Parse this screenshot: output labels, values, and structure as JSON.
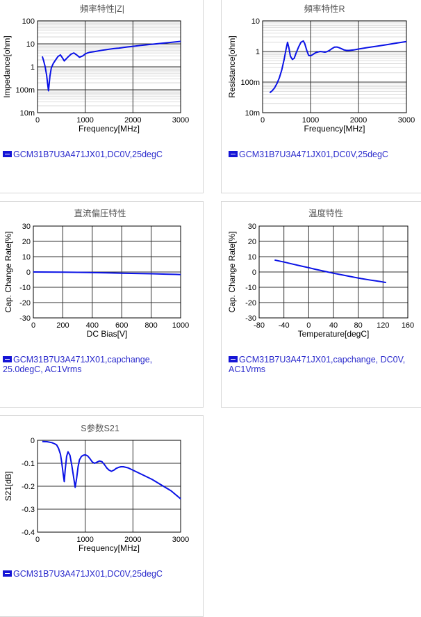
{
  "colors": {
    "series": "#0a12e6",
    "legend_text": "#2a2acc",
    "title": "#555555",
    "panel_border": "#d6d6d6"
  },
  "chart_data": [
    {
      "type": "line",
      "title": "頻率特性|Z|",
      "xlabel": "Frequency[MHz]",
      "ylabel": "Impedance[ohm]",
      "xlim": [
        0,
        3000
      ],
      "ylim": [
        0.01,
        100
      ],
      "yscale": "log",
      "x_ticks": [
        "0",
        "1000",
        "2000",
        "3000"
      ],
      "y_ticks": [
        "10m",
        "100m",
        "1",
        "10",
        "100"
      ],
      "grid": true,
      "legend_icon": "minus-icon",
      "legend": "GCM31B7U3A471JX01,DC0V,25degC",
      "series": [
        {
          "name": "GCM31B7U3A471JX01,DC0V,25degC",
          "x": [
            100,
            130,
            160,
            190,
            210,
            230,
            245,
            260,
            290,
            330,
            380,
            430,
            480,
            520,
            560,
            600,
            650,
            700,
            760,
            820,
            880,
            950,
            1000,
            1050,
            1100,
            1200,
            1300,
            1400,
            1500,
            1600,
            1700,
            1800,
            2000,
            2200,
            2400,
            2600,
            2800,
            3000
          ],
          "y": [
            2.8,
            1.8,
            1.0,
            0.45,
            0.2,
            0.09,
            0.18,
            0.4,
            0.9,
            1.4,
            2.0,
            2.8,
            3.3,
            2.5,
            1.8,
            2.2,
            2.8,
            3.5,
            4.0,
            3.3,
            2.6,
            3.0,
            3.6,
            4.0,
            4.3,
            4.6,
            5.0,
            5.4,
            5.8,
            6.2,
            6.5,
            6.9,
            7.8,
            8.7,
            9.6,
            10.6,
            11.6,
            12.8
          ]
        }
      ]
    },
    {
      "type": "line",
      "title": "頻率特性R",
      "xlabel": "Frequency[MHz]",
      "ylabel": "Resistance[ohm]",
      "xlim": [
        0,
        3000
      ],
      "ylim": [
        0.01,
        10
      ],
      "yscale": "log",
      "x_ticks": [
        "0",
        "1000",
        "2000",
        "3000"
      ],
      "y_ticks": [
        "10m",
        "100m",
        "1",
        "10"
      ],
      "grid": true,
      "legend_icon": "minus-icon",
      "legend": "GCM31B7U3A471JX01,DC0V,25degC",
      "series": [
        {
          "name": "GCM31B7U3A471JX01,DC0V,25degC",
          "x": [
            150,
            200,
            250,
            300,
            350,
            400,
            450,
            490,
            520,
            550,
            580,
            620,
            660,
            700,
            750,
            800,
            850,
            880,
            920,
            960,
            1000,
            1050,
            1100,
            1150,
            1200,
            1250,
            1300,
            1350,
            1400,
            1450,
            1500,
            1550,
            1600,
            1650,
            1700,
            1750,
            1800,
            1900,
            2000,
            2200,
            2400,
            2600,
            2800,
            3000
          ],
          "y": [
            0.045,
            0.052,
            0.065,
            0.09,
            0.14,
            0.25,
            0.55,
            1.2,
            2.0,
            1.3,
            0.7,
            0.55,
            0.6,
            0.9,
            1.4,
            2.0,
            2.2,
            1.8,
            1.1,
            0.75,
            0.72,
            0.8,
            0.9,
            0.96,
            1.0,
            0.98,
            0.95,
            1.0,
            1.1,
            1.25,
            1.38,
            1.4,
            1.32,
            1.22,
            1.12,
            1.08,
            1.08,
            1.12,
            1.2,
            1.35,
            1.5,
            1.68,
            1.88,
            2.1
          ]
        }
      ]
    },
    {
      "type": "line",
      "title": "直流偏圧特性",
      "xlabel": "DC Bias[V]",
      "ylabel": "Cap. Change Rate[%]",
      "xlim": [
        0,
        1000
      ],
      "ylim": [
        -30,
        30
      ],
      "x_ticks": [
        "0",
        "200",
        "400",
        "600",
        "800",
        "1000"
      ],
      "y_ticks": [
        "-30",
        "-20",
        "-10",
        "0",
        "10",
        "20",
        "30"
      ],
      "grid": true,
      "legend_icon": "minus-icon",
      "legend": "GCM31B7U3A471JX01,capchange,\n25.0degC, AC1Vrms",
      "series": [
        {
          "name": "GCM31B7U3A471JX01,capchange, 25.0degC, AC1Vrms",
          "x": [
            0,
            100,
            200,
            300,
            400,
            500,
            600,
            700,
            800,
            900,
            1000
          ],
          "y": [
            0,
            -0.05,
            -0.15,
            -0.25,
            -0.4,
            -0.55,
            -0.75,
            -0.95,
            -1.15,
            -1.4,
            -1.7
          ]
        }
      ]
    },
    {
      "type": "line",
      "title": "温度特性",
      "xlabel": "Temperature[degC]",
      "ylabel": "Cap. Change Rate[%]",
      "xlim": [
        -80,
        160
      ],
      "ylim": [
        -30,
        30
      ],
      "x_ticks": [
        "-80",
        "-40",
        "0",
        "40",
        "80",
        "120",
        "160"
      ],
      "y_ticks": [
        "-30",
        "-20",
        "-10",
        "0",
        "10",
        "20",
        "30"
      ],
      "grid": true,
      "legend_icon": "minus-icon",
      "legend": "GCM31B7U3A471JX01,capchange, DC0V,\nAC1Vrms",
      "series": [
        {
          "name": "GCM31B7U3A471JX01,capchange, DC0V, AC1Vrms",
          "x": [
            -55,
            -40,
            -25,
            -10,
            0,
            10,
            25,
            40,
            55,
            70,
            85,
            100,
            115,
            125
          ],
          "y": [
            7.8,
            6.5,
            5.1,
            3.7,
            2.8,
            1.8,
            0.5,
            -0.8,
            -2.0,
            -3.2,
            -4.3,
            -5.3,
            -6.2,
            -6.9
          ]
        }
      ]
    },
    {
      "type": "line",
      "title": "S参数S21",
      "xlabel": "Frequency[MHz]",
      "ylabel": "S21[dB]",
      "xlim": [
        0,
        3000
      ],
      "ylim": [
        -0.4,
        0
      ],
      "x_ticks": [
        "0",
        "1000",
        "2000",
        "3000"
      ],
      "y_ticks": [
        "-0.4",
        "-0.3",
        "-0.2",
        "-0.1",
        "0"
      ],
      "grid": true,
      "legend_icon": "minus-icon",
      "legend": "GCM31B7U3A471JX01,DC0V,25degC",
      "series": [
        {
          "name": "GCM31B7U3A471JX01,DC0V,25degC",
          "x": [
            100,
            200,
            300,
            360,
            400,
            440,
            480,
            510,
            540,
            560,
            580,
            610,
            640,
            680,
            720,
            760,
            790,
            820,
            850,
            880,
            920,
            960,
            1000,
            1050,
            1100,
            1150,
            1200,
            1250,
            1300,
            1350,
            1400,
            1450,
            1500,
            1550,
            1600,
            1650,
            1700,
            1750,
            1800,
            1900,
            2000,
            2200,
            2400,
            2600,
            2800,
            3000
          ],
          "y": [
            -0.005,
            -0.006,
            -0.01,
            -0.015,
            -0.02,
            -0.035,
            -0.06,
            -0.1,
            -0.15,
            -0.18,
            -0.13,
            -0.07,
            -0.05,
            -0.065,
            -0.11,
            -0.165,
            -0.205,
            -0.165,
            -0.115,
            -0.085,
            -0.07,
            -0.065,
            -0.063,
            -0.068,
            -0.08,
            -0.095,
            -0.1,
            -0.095,
            -0.09,
            -0.093,
            -0.105,
            -0.12,
            -0.13,
            -0.135,
            -0.13,
            -0.122,
            -0.118,
            -0.115,
            -0.115,
            -0.12,
            -0.13,
            -0.15,
            -0.17,
            -0.195,
            -0.22,
            -0.255
          ]
        }
      ]
    }
  ]
}
